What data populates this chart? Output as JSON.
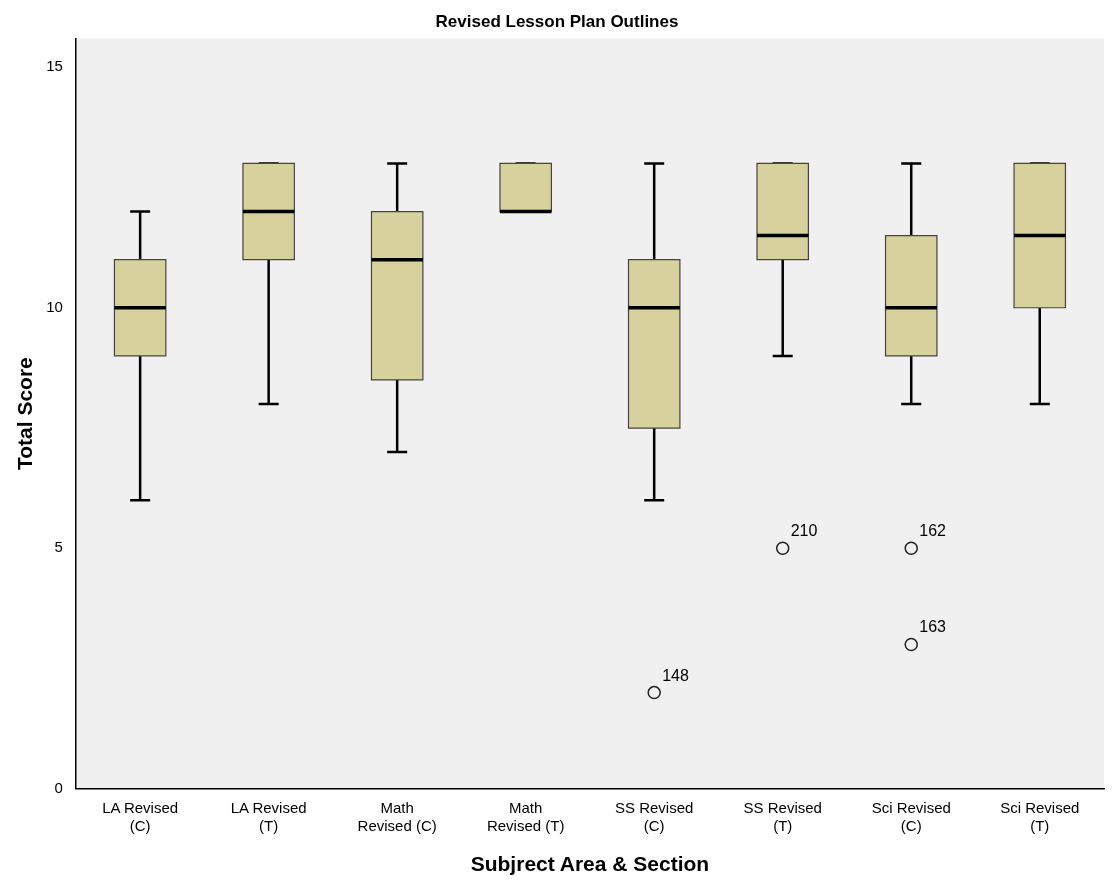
{
  "chart_data": {
    "type": "box",
    "title": "Revised Lesson Plan Outlines",
    "xlabel": "Subjrect Area & Section",
    "ylabel": "Total Score",
    "categories": [
      "LA Revised (C)",
      "LA Revised (T)",
      "Math Revised (C)",
      "Math Revised (T)",
      "SS Revised (C)",
      "SS Revised (T)",
      "Sci Revised (C)",
      "Sci Revised (T)"
    ],
    "color": "#d6d19d",
    "boxes": [
      {
        "low": 6,
        "q1": 9,
        "median": 10,
        "q3": 11,
        "high": 12
      },
      {
        "low": 8,
        "q1": 11,
        "median": 12,
        "q3": 13,
        "high": 13
      },
      {
        "low": 7,
        "q1": 8.5,
        "median": 11,
        "q3": 12,
        "high": 13
      },
      {
        "low": 12,
        "q1": 12,
        "median": 12,
        "q3": 13,
        "high": 13
      },
      {
        "low": 6,
        "q1": 7.5,
        "median": 10,
        "q3": 11,
        "high": 13,
        "outliers": [
          2
        ]
      },
      {
        "low": 9,
        "q1": 11,
        "median": 11.5,
        "q3": 13,
        "high": 13,
        "outliers": [
          5
        ]
      },
      {
        "low": 8,
        "q1": 9,
        "median": 10,
        "q3": 11.5,
        "high": 13,
        "outliers": [
          5,
          3
        ]
      },
      {
        "low": 8,
        "q1": 10,
        "median": 11.5,
        "q3": 13,
        "high": 13
      }
    ],
    "annotations": [
      "148",
      "210",
      "162",
      "163"
    ],
    "ylim": [
      0,
      15.6
    ],
    "yticks": [
      0,
      5,
      10,
      15
    ],
    "grid": false,
    "legend": false
  }
}
